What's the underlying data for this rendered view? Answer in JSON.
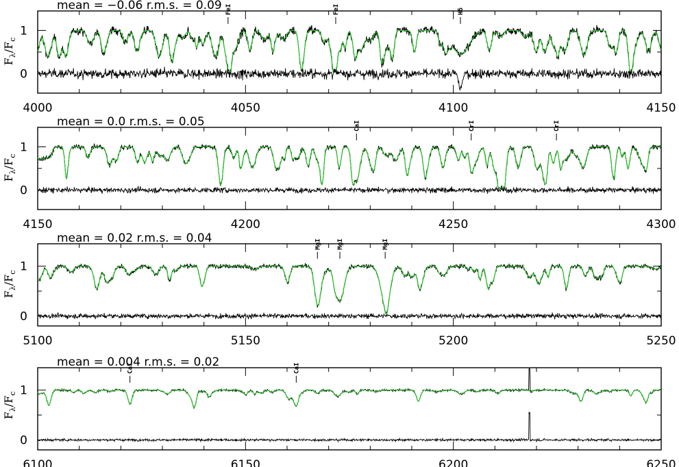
{
  "colors": {
    "observed": "#000000",
    "model": "#22cc22",
    "residual": "#000000"
  },
  "ylabel": {
    "main": "F",
    "sub1": "λ",
    "slash": "/F",
    "sub2": "c"
  },
  "chart_data": [
    {
      "type": "line",
      "title": "mean  =  −0.06  r.m.s.  =  0.09",
      "xlim": [
        4000,
        4150
      ],
      "xticks": [
        4000,
        4050,
        4100,
        4150
      ],
      "xtick_labels": [
        "4000",
        "4050",
        "4100",
        "4150"
      ],
      "yticks": [
        0,
        1
      ],
      "ytick_labels": [
        "0",
        "1"
      ],
      "ylim": [
        -0.45,
        1.45
      ],
      "noise": 0.09,
      "series": [
        {
          "role": "observed",
          "color": "#000000"
        },
        {
          "role": "model",
          "color": "#22cc22"
        },
        {
          "role": "residual",
          "offset": 0,
          "color": "#000000"
        }
      ],
      "lines": [
        {
          "label": "FeI",
          "x": 4045.8
        },
        {
          "label": "FeI",
          "x": 4071.7
        },
        {
          "label": "Hδ",
          "x": 4101.7
        }
      ],
      "absorption": [
        {
          "x": 4005.2,
          "depth": 0.6,
          "width": 0.6
        },
        {
          "x": 4045.8,
          "depth": 0.75,
          "width": 0.8
        },
        {
          "x": 4063.6,
          "depth": 0.6,
          "width": 0.6
        },
        {
          "x": 4071.7,
          "depth": 0.6,
          "width": 0.6
        },
        {
          "x": 4101.7,
          "depth": 0.55,
          "width": 2.0
        }
      ]
    },
    {
      "type": "line",
      "title": "mean  =  0.0  r.m.s.  =  0.05",
      "xlim": [
        4150,
        4300
      ],
      "xticks": [
        4150,
        4200,
        4250,
        4300
      ],
      "xtick_labels": [
        "4150",
        "4200",
        "4250",
        "4300"
      ],
      "yticks": [
        0,
        1
      ],
      "ytick_labels": [
        "0",
        "1"
      ],
      "ylim": [
        -0.45,
        1.45
      ],
      "noise": 0.05,
      "series": [
        {
          "role": "observed",
          "color": "#000000"
        },
        {
          "role": "model",
          "color": "#22cc22"
        },
        {
          "role": "residual",
          "offset": 0,
          "color": "#000000"
        }
      ],
      "lines": [
        {
          "label": "CaI",
          "x": 4226.7
        },
        {
          "label": "CrI",
          "x": 4254.3
        },
        {
          "label": "CrI",
          "x": 4274.8
        }
      ],
      "absorption": [
        {
          "x": 4226.7,
          "depth": 0.8,
          "width": 0.8
        },
        {
          "x": 4254.3,
          "depth": 0.5,
          "width": 0.5
        },
        {
          "x": 4271.7,
          "depth": 0.6,
          "width": 0.6
        }
      ]
    },
    {
      "type": "line",
      "title": "mean  =  0.02  r.m.s.  =  0.04",
      "xlim": [
        5100,
        5250
      ],
      "xticks": [
        5100,
        5150,
        5200,
        5250
      ],
      "xtick_labels": [
        "5100",
        "5150",
        "5200",
        "5250"
      ],
      "yticks": [
        0,
        1
      ],
      "ytick_labels": [
        "0",
        "1"
      ],
      "ylim": [
        -0.2,
        1.45
      ],
      "noise": 0.04,
      "series": [
        {
          "role": "observed",
          "color": "#000000"
        },
        {
          "role": "model",
          "color": "#22cc22"
        },
        {
          "role": "residual",
          "offset": 0,
          "color": "#000000"
        }
      ],
      "lines": [
        {
          "label": "MgI",
          "x": 5167.3
        },
        {
          "label": "MgI",
          "x": 5172.7
        },
        {
          "label": "MgI",
          "x": 5183.6
        }
      ],
      "absorption": [
        {
          "x": 5167.3,
          "depth": 0.7,
          "width": 0.7
        },
        {
          "x": 5172.7,
          "depth": 0.7,
          "width": 1.0
        },
        {
          "x": 5183.6,
          "depth": 0.72,
          "width": 1.1
        },
        {
          "x": 5139.5,
          "depth": 0.4,
          "width": 0.5
        },
        {
          "x": 5227.2,
          "depth": 0.45,
          "width": 0.5
        },
        {
          "x": 5208.4,
          "depth": 0.45,
          "width": 0.5
        }
      ]
    },
    {
      "type": "line",
      "title": "mean  =  0.004  r.m.s.  =  0.02",
      "xlim": [
        6100,
        6250
      ],
      "xticks": [
        6100,
        6150,
        6200,
        6250
      ],
      "xtick_labels": [
        "6100",
        "6150",
        "6200",
        "6250"
      ],
      "yticks": [
        0,
        1
      ],
      "ytick_labels": [
        "0",
        "1"
      ],
      "ylim": [
        -0.2,
        1.45
      ],
      "noise": 0.02,
      "series": [
        {
          "role": "observed",
          "color": "#000000"
        },
        {
          "role": "model",
          "color": "#22cc22"
        },
        {
          "role": "residual",
          "offset": 0,
          "color": "#000000"
        }
      ],
      "lines": [
        {
          "label": "CaI",
          "x": 6122.2
        },
        {
          "label": "CaI",
          "x": 6162.2
        }
      ],
      "absorption": [
        {
          "x": 6102.7,
          "depth": 0.3,
          "width": 0.5
        },
        {
          "x": 6122.2,
          "depth": 0.28,
          "width": 0.5
        },
        {
          "x": 6137.7,
          "depth": 0.25,
          "width": 0.5
        },
        {
          "x": 6162.2,
          "depth": 0.3,
          "width": 0.6
        },
        {
          "x": 6191.6,
          "depth": 0.22,
          "width": 0.5
        },
        {
          "x": 6230.7,
          "depth": 0.22,
          "width": 0.5
        },
        {
          "x": 6246.3,
          "depth": 0.2,
          "width": 0.5
        }
      ],
      "spike": 6218.3
    }
  ]
}
